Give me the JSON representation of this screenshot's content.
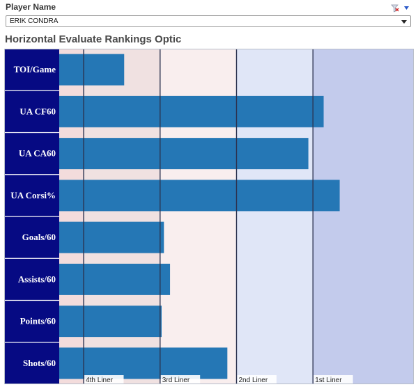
{
  "filter": {
    "label": "Player Name",
    "selected": "ERIK CONDRA"
  },
  "chart_data": {
    "type": "bar",
    "orientation": "horizontal",
    "title": "Horizontal Evaluate Rankings Optic",
    "categories": [
      "TOI/Game",
      "UA CF60",
      "UA CA60",
      "UA Corsi%",
      "Goals/60",
      "Assists/60",
      "Points/60",
      "Shots/60"
    ],
    "values": [
      0.53,
      3.14,
      2.94,
      3.35,
      1.05,
      1.13,
      1.02,
      1.88
    ],
    "xlim": [
      -0.32,
      4.32
    ],
    "bands": [
      {
        "label": "4th Liner",
        "start": 0,
        "end": 1,
        "color": "#f0e1e1"
      },
      {
        "label": "3rd Liner",
        "start": 1,
        "end": 2,
        "color": "#f9eeee"
      },
      {
        "label": "2nd Liner",
        "start": 2,
        "end": 3,
        "color": "#e0e6f7"
      },
      {
        "label": "1st Liner",
        "start": 3,
        "end": 4.32,
        "color": "#c3cbec"
      }
    ],
    "bar_color": "#2577b5",
    "label_bg_color": "#060a83"
  }
}
